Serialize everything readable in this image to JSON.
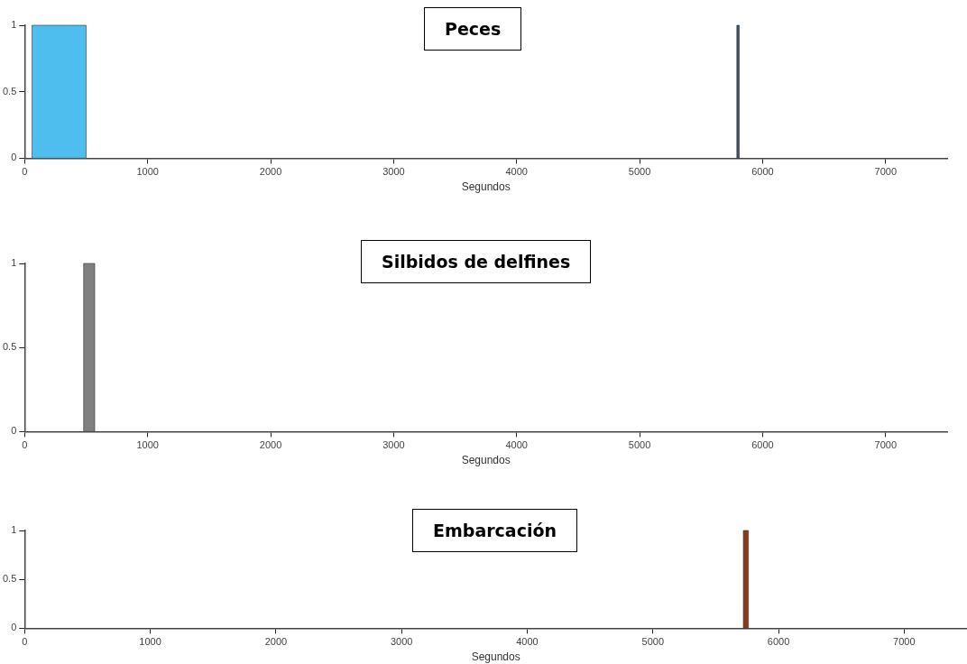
{
  "chart_data": [
    {
      "type": "histogram",
      "title": "Peces",
      "xlabel": "Segundos",
      "bins": [
        60,
        500,
        5790,
        5810
      ],
      "values": [
        1,
        0,
        1
      ],
      "colors": [
        "#4dbeee",
        "#3d5468",
        "#3d5468"
      ],
      "xlim": [
        0,
        7500
      ],
      "xticks": [
        0,
        1000,
        2000,
        3000,
        4000,
        5000,
        6000,
        7000
      ],
      "ylim": [
        0,
        1
      ],
      "yticks": [
        0,
        0.5,
        1
      ],
      "grid": false,
      "legend": false
    },
    {
      "type": "histogram",
      "title": "Silbidos de delfines",
      "xlabel": "Segundos",
      "bins": [
        480,
        570
      ],
      "values": [
        1
      ],
      "colors": [
        "#808080"
      ],
      "xlim": [
        0,
        7500
      ],
      "xticks": [
        0,
        1000,
        2000,
        3000,
        4000,
        5000,
        6000,
        7000
      ],
      "ylim": [
        0,
        1
      ],
      "yticks": [
        0,
        0.5,
        1
      ],
      "grid": false,
      "legend": false
    },
    {
      "type": "histogram",
      "title": "Embarcación",
      "xlabel": "Segundos",
      "bins": [
        5720,
        5760
      ],
      "values": [
        1
      ],
      "colors": [
        "#8b3a1a"
      ],
      "xlim": [
        0,
        7500
      ],
      "xticks": [
        0,
        1000,
        2000,
        3000,
        4000,
        5000,
        6000,
        7000
      ],
      "ylim": [
        0,
        1
      ],
      "yticks": [
        0,
        0.5,
        1
      ],
      "grid": false,
      "legend": false
    }
  ]
}
